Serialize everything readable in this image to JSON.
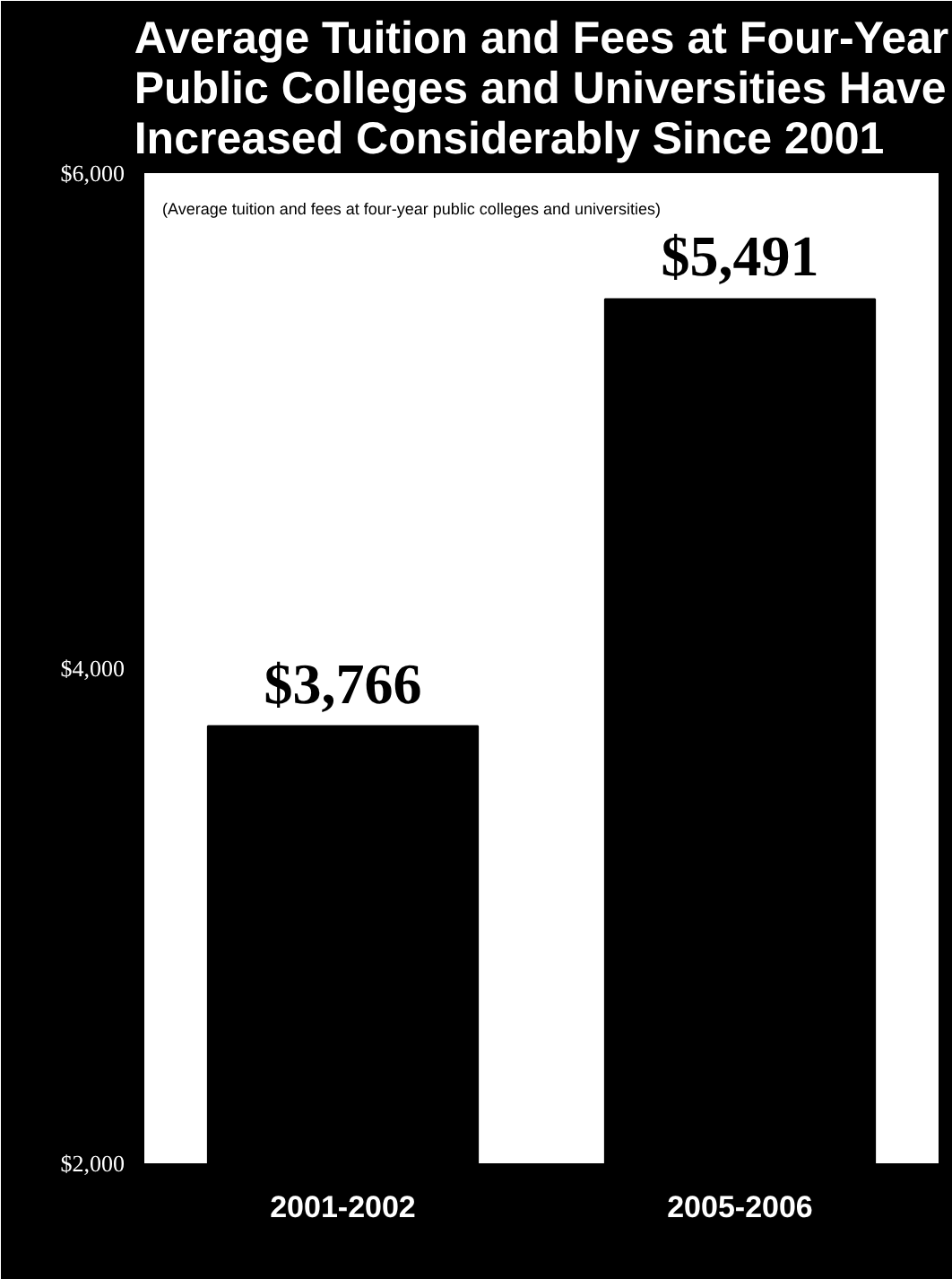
{
  "chart_data": {
    "type": "bar",
    "title": "Average Tuition and Fees at Four-Year Public Colleges and Universities Have Increased Considerably Since 2001",
    "subtitle": "(Average tuition and fees at four-year public colleges and universities)",
    "categories": [
      "2001-2002",
      "2005-2006"
    ],
    "values": [
      3766,
      5491
    ],
    "value_labels": [
      "$3,766",
      "$5,491"
    ],
    "color": "#000000",
    "ylim": [
      2000,
      6000
    ],
    "yticks": [
      {
        "value": 2000,
        "label": "$2,000"
      },
      {
        "value": 4000,
        "label": "$4,000"
      },
      {
        "value": 6000,
        "label": "$6,000"
      }
    ],
    "grid": false
  }
}
